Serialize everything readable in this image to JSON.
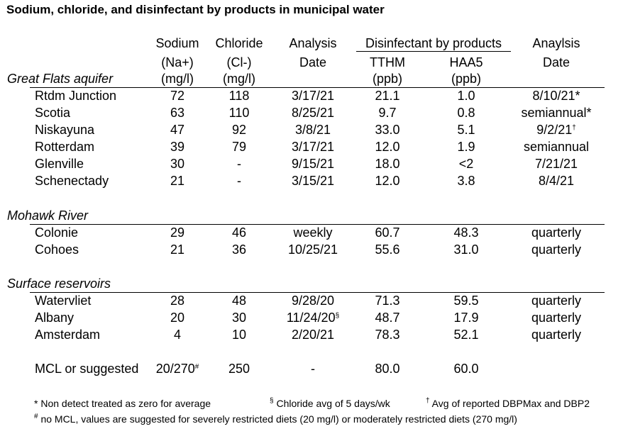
{
  "title": "Sodium, chloride, and disinfectant by products in municipal water",
  "headers": {
    "sodium": [
      "Sodium",
      "(Na+)",
      "(mg/l)"
    ],
    "chloride": [
      "Chloride",
      "(Cl-)",
      "(mg/l)"
    ],
    "analysis_date": [
      "Analysis",
      "Date"
    ],
    "dbp_group": "Disinfectant by products",
    "tthm": [
      "TTHM",
      "(ppb)"
    ],
    "haa5": [
      "HAA5",
      "(ppb)"
    ],
    "analysis_date2": [
      "Anaylsis",
      "Date"
    ]
  },
  "groups": [
    {
      "name": "Great Flats aquifer",
      "rows": [
        {
          "name": "Rtdm Junction",
          "sodium": "72",
          "chloride": "118",
          "date": "3/17/21",
          "date_sup": "",
          "tthm": "21.1",
          "haa5": "1.0",
          "date2": "8/10/21*",
          "date2_sup": ""
        },
        {
          "name": "Scotia",
          "sodium": "63",
          "chloride": "110",
          "date": "8/25/21",
          "date_sup": "",
          "tthm": "9.7",
          "haa5": "0.8",
          "date2": "semiannual*",
          "date2_sup": ""
        },
        {
          "name": "Niskayuna",
          "sodium": "47",
          "chloride": "92",
          "date": "3/8/21",
          "date_sup": "",
          "tthm": "33.0",
          "haa5": "5.1",
          "date2": "9/2/21",
          "date2_sup": "†"
        },
        {
          "name": "Rotterdam",
          "sodium": "39",
          "chloride": "79",
          "date": "3/17/21",
          "date_sup": "",
          "tthm": "12.0",
          "haa5": "1.9",
          "date2": "semiannual",
          "date2_sup": ""
        },
        {
          "name": "Glenville",
          "sodium": "30",
          "chloride": "-",
          "date": "9/15/21",
          "date_sup": "",
          "tthm": "18.0",
          "haa5": "<2",
          "date2": "7/21/21",
          "date2_sup": ""
        },
        {
          "name": "Schenectady",
          "sodium": "21",
          "chloride": "-",
          "date": "3/15/21",
          "date_sup": "",
          "tthm": "12.0",
          "haa5": "3.8",
          "date2": "8/4/21",
          "date2_sup": ""
        }
      ]
    },
    {
      "name": "Mohawk River",
      "rows": [
        {
          "name": "Colonie",
          "sodium": "29",
          "chloride": "46",
          "date": "weekly",
          "date_sup": "",
          "tthm": "60.7",
          "haa5": "48.3",
          "date2": "quarterly",
          "date2_sup": ""
        },
        {
          "name": "Cohoes",
          "sodium": "21",
          "chloride": "36",
          "date": "10/25/21",
          "date_sup": "",
          "tthm": "55.6",
          "haa5": "31.0",
          "date2": "quarterly",
          "date2_sup": ""
        }
      ]
    },
    {
      "name": "Surface reservoirs",
      "rows": [
        {
          "name": "Watervliet",
          "sodium": "28",
          "chloride": "48",
          "date": "9/28/20",
          "date_sup": "",
          "tthm": "71.3",
          "haa5": "59.5",
          "date2": "quarterly",
          "date2_sup": ""
        },
        {
          "name": "Albany",
          "sodium": "20",
          "chloride": "30",
          "date": "11/24/20",
          "date_sup": "§",
          "tthm": "48.7",
          "haa5": "17.9",
          "date2": "quarterly",
          "date2_sup": ""
        },
        {
          "name": "Amsterdam",
          "sodium": "4",
          "chloride": "10",
          "date": "2/20/21",
          "date_sup": "",
          "tthm": "78.3",
          "haa5": "52.1",
          "date2": "quarterly",
          "date2_sup": ""
        }
      ]
    }
  ],
  "mcl": {
    "name": "MCL or suggested",
    "sodium": "20/270",
    "sodium_sup": "#",
    "chloride": "250",
    "date": "-",
    "tthm": "80.0",
    "haa5": "60.0"
  },
  "footnotes": {
    "star": "* Non detect treated as zero for average",
    "section_sym": "§",
    "section": " Chloride avg of 5 days/wk",
    "dagger_sym": "†",
    "dagger": " Avg of reported DBPMax and DBP2",
    "hash_sym": "#",
    "hash": " no MCL, values are suggested for severely restricted diets (20 mg/l) or moderately restricted diets (270 mg/l)"
  }
}
